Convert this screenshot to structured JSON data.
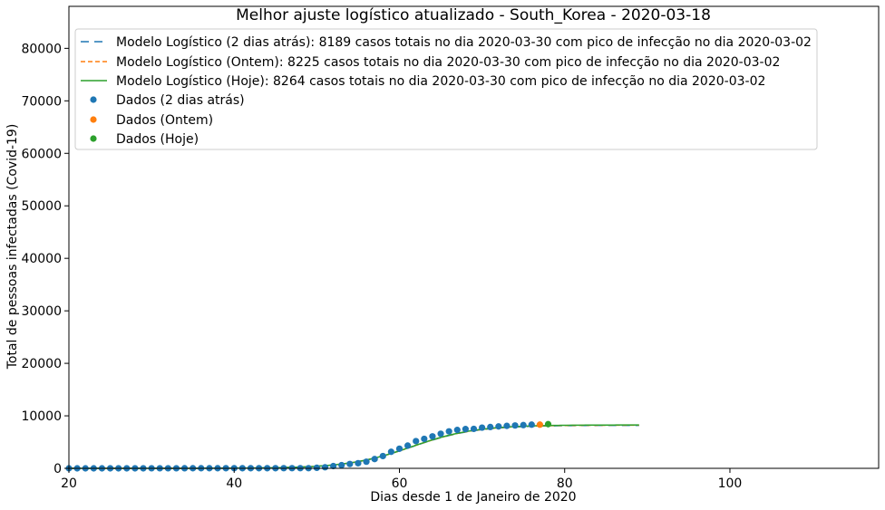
{
  "chart_data": {
    "type": "scatter",
    "title": "Melhor ajuste logístico atualizado - South_Korea - 2020-03-18",
    "xlabel": "Dias desde 1 de Janeiro de 2020",
    "ylabel": "Total de pessoas infectadas (Covid-19)",
    "xlim": [
      20,
      118
    ],
    "ylim": [
      0,
      88000
    ],
    "xticks": [
      20,
      40,
      60,
      80,
      100
    ],
    "yticks": [
      0,
      10000,
      20000,
      30000,
      40000,
      50000,
      60000,
      70000,
      80000
    ],
    "grid": false,
    "legend_position": "top-left",
    "legend": [
      {
        "label": "Modelo Logístico (2 dias atrás): 8189 casos totais no dia 2020-03-30 com pico de infecção no dia 2020-03-02",
        "kind": "line",
        "dash": "dashed-wide",
        "color": "#1f77b4"
      },
      {
        "label": "Modelo Logístico (Ontem): 8225 casos totais no dia 2020-03-30 com pico de infecção no dia 2020-03-02",
        "kind": "line",
        "dash": "dashed",
        "color": "#ff7f0e"
      },
      {
        "label": "Modelo Logístico (Hoje): 8264 casos totais no dia 2020-03-30 com pico de infecção no dia 2020-03-02",
        "kind": "line",
        "dash": "solid",
        "color": "#2ca02c"
      },
      {
        "label": "Dados (2 dias atrás)",
        "kind": "point",
        "color": "#1f77b4"
      },
      {
        "label": "Dados (Ontem)",
        "kind": "point",
        "color": "#ff7f0e"
      },
      {
        "label": "Dados (Hoje)",
        "kind": "point",
        "color": "#2ca02c"
      }
    ],
    "models": [
      {
        "name": "Modelo Logístico (2 dias atrás)",
        "a": 3.85,
        "b": 61.5,
        "c": 8189,
        "x_range": [
          20,
          89
        ]
      },
      {
        "name": "Modelo Logístico (Ontem)",
        "a": 3.85,
        "b": 61.5,
        "c": 8225,
        "x_range": [
          20,
          89
        ]
      },
      {
        "name": "Modelo Logístico (Hoje)",
        "a": 3.85,
        "b": 61.5,
        "c": 8264,
        "x_range": [
          20,
          89
        ]
      }
    ],
    "series": [
      {
        "name": "Dados (2 dias atrás)",
        "color": "#1f77b4",
        "x": [
          20,
          21,
          22,
          23,
          24,
          25,
          26,
          27,
          28,
          29,
          30,
          31,
          32,
          33,
          34,
          35,
          36,
          37,
          38,
          39,
          40,
          41,
          42,
          43,
          44,
          45,
          46,
          47,
          48,
          49,
          50,
          51,
          52,
          53,
          54,
          55,
          56,
          57,
          58,
          59,
          60,
          61,
          62,
          63,
          64,
          65,
          66,
          67,
          68,
          69,
          70,
          71,
          72,
          73,
          74,
          75,
          76
        ],
        "y": [
          1,
          1,
          1,
          2,
          2,
          3,
          4,
          4,
          4,
          6,
          11,
          12,
          15,
          15,
          16,
          19,
          23,
          24,
          24,
          25,
          27,
          28,
          28,
          28,
          28,
          28,
          29,
          30,
          31,
          31,
          104,
          204,
          433,
          602,
          833,
          977,
          1261,
          1766,
          2337,
          3150,
          3736,
          4335,
          5186,
          5621,
          6088,
          6593,
          7041,
          7314,
          7478,
          7513,
          7755,
          7869,
          7979,
          8086,
          8162,
          8236,
          8320
        ]
      },
      {
        "name": "Dados (Ontem)",
        "color": "#ff7f0e",
        "x": [
          77
        ],
        "y": [
          8320
        ]
      },
      {
        "name": "Dados (Hoje)",
        "color": "#2ca02c",
        "x": [
          78
        ],
        "y": [
          8413
        ]
      }
    ]
  }
}
